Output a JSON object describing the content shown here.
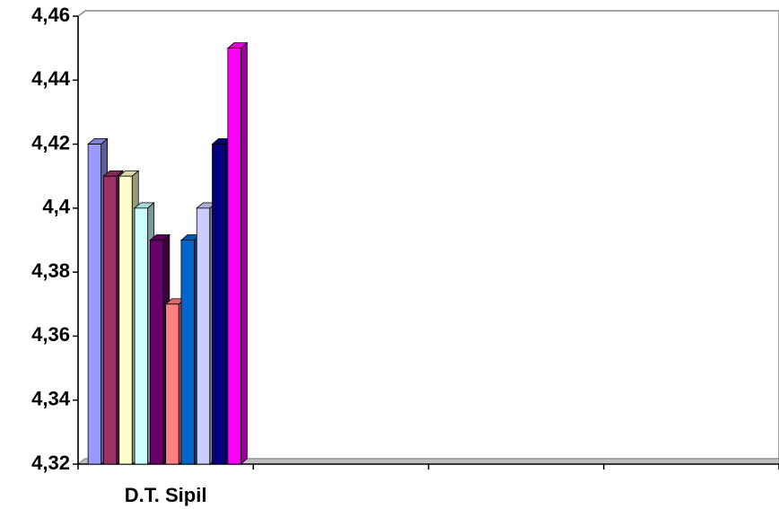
{
  "chart_data": {
    "type": "bar3d",
    "categories": [
      "D.T. Sipil",
      null,
      null,
      null
    ],
    "series": [
      {
        "color": "#9999ff",
        "values": [
          4.42,
          null,
          null,
          null
        ]
      },
      {
        "color": "#993366",
        "values": [
          4.41,
          null,
          null,
          null
        ]
      },
      {
        "color": "#ffffcc",
        "values": [
          4.41,
          null,
          null,
          null
        ]
      },
      {
        "color": "#ccffff",
        "values": [
          4.4,
          null,
          null,
          null
        ]
      },
      {
        "color": "#660066",
        "values": [
          4.39,
          null,
          null,
          null
        ]
      },
      {
        "color": "#ff8080",
        "values": [
          4.37,
          null,
          null,
          null
        ]
      },
      {
        "color": "#0066cc",
        "values": [
          4.39,
          null,
          null,
          null
        ]
      },
      {
        "color": "#ccccff",
        "values": [
          4.4,
          null,
          null,
          null
        ]
      },
      {
        "color": "#000080",
        "values": [
          4.42,
          null,
          null,
          null
        ]
      },
      {
        "color": "#ff00ff",
        "values": [
          4.45,
          null,
          null,
          null
        ]
      }
    ],
    "ylim": [
      4.32,
      4.46
    ],
    "yticks": [
      {
        "value": 4.32,
        "label": "4,32"
      },
      {
        "value": 4.34,
        "label": "4,34"
      },
      {
        "value": 4.36,
        "label": "4,36"
      },
      {
        "value": 4.38,
        "label": "4,38"
      },
      {
        "value": 4.4,
        "label": "4,4"
      },
      {
        "value": 4.42,
        "label": "4,42"
      },
      {
        "value": 4.44,
        "label": "4,44"
      },
      {
        "value": 4.46,
        "label": "4,46"
      }
    ],
    "grid": false
  }
}
